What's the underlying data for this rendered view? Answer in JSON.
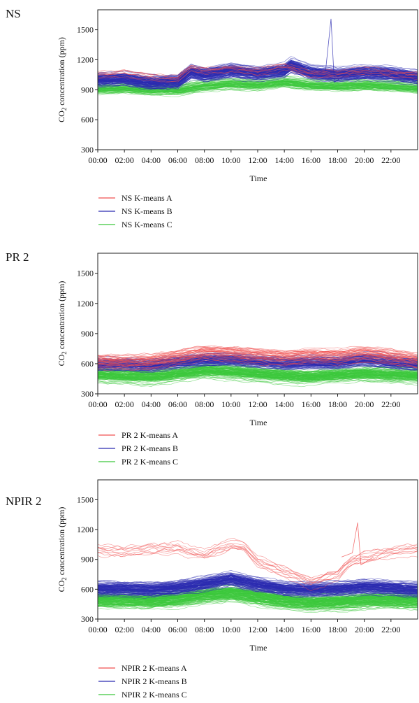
{
  "chart_data": [
    {
      "type": "line",
      "title": "NS",
      "xlabel": "Time",
      "ylabel_main": "CO",
      "ylabel_sub": "2",
      "ylabel_rest": " concentration (ppm)",
      "ylim": [
        300,
        1700
      ],
      "yticks": [
        300,
        600,
        900,
        1200,
        1500
      ],
      "xticks": [
        "00:00",
        "02:00",
        "04:00",
        "06:00",
        "08:00",
        "10:00",
        "12:00",
        "14:00",
        "16:00",
        "18:00",
        "20:00",
        "22:00"
      ],
      "x_range_hours": [
        0,
        24
      ],
      "grid": false,
      "legend_placement": "below",
      "series": [
        {
          "name": "NS K-means A",
          "color": "#f05050",
          "approx_count": 8,
          "spread": 55,
          "x": [
            0,
            2,
            4,
            6,
            7,
            8,
            10,
            12,
            14,
            16,
            18,
            20,
            22,
            24
          ],
          "y": [
            1040,
            1060,
            1020,
            1010,
            1120,
            1090,
            1110,
            1080,
            1130,
            1060,
            1050,
            1090,
            1060,
            1040
          ]
        },
        {
          "name": "NS K-means B",
          "color": "#2b2bb0",
          "approx_count": 120,
          "spread": 50,
          "x": [
            0,
            2,
            4,
            6,
            7,
            8,
            10,
            12,
            14,
            14.5,
            16,
            18,
            20,
            22,
            24
          ],
          "y": [
            1000,
            1010,
            970,
            980,
            1080,
            1050,
            1090,
            1060,
            1090,
            1140,
            1070,
            1050,
            1070,
            1060,
            1020
          ]
        },
        {
          "name": "NS K-means C",
          "color": "#3cc83c",
          "approx_count": 70,
          "spread": 40,
          "x": [
            0,
            2,
            4,
            6,
            8,
            10,
            12,
            14,
            16,
            18,
            20,
            22,
            24
          ],
          "y": [
            910,
            920,
            900,
            900,
            940,
            960,
            950,
            980,
            950,
            940,
            950,
            940,
            920
          ]
        }
      ],
      "annotations": [
        {
          "label": "spike",
          "x": 17.5,
          "y": 1610
        }
      ]
    },
    {
      "type": "line",
      "title": "PR 2",
      "xlabel": "Time",
      "ylabel_main": "CO",
      "ylabel_sub": "2",
      "ylabel_rest": " concentration (ppm)",
      "ylim": [
        300,
        1700
      ],
      "yticks": [
        300,
        600,
        900,
        1200,
        1500
      ],
      "xticks": [
        "00:00",
        "02:00",
        "04:00",
        "06:00",
        "08:00",
        "10:00",
        "12:00",
        "14:00",
        "16:00",
        "18:00",
        "20:00",
        "22:00"
      ],
      "x_range_hours": [
        0,
        24
      ],
      "grid": false,
      "legend_placement": "below",
      "series": [
        {
          "name": "PR 2 K-means A",
          "color": "#f05050",
          "approx_count": 35,
          "spread": 55,
          "x": [
            0,
            2,
            4,
            6,
            8,
            10,
            12,
            14,
            16,
            18,
            20,
            22,
            24
          ],
          "y": [
            640,
            630,
            640,
            680,
            730,
            720,
            700,
            680,
            700,
            690,
            720,
            690,
            650
          ]
        },
        {
          "name": "PR 2 K-means B",
          "color": "#2b2bb0",
          "approx_count": 90,
          "spread": 45,
          "x": [
            0,
            2,
            4,
            6,
            8,
            10,
            12,
            14,
            16,
            18,
            20,
            22,
            24
          ],
          "y": [
            590,
            590,
            580,
            610,
            640,
            640,
            620,
            600,
            610,
            610,
            640,
            610,
            590
          ]
        },
        {
          "name": "PR 2 K-means C",
          "color": "#3cc83c",
          "approx_count": 110,
          "spread": 55,
          "x": [
            0,
            2,
            4,
            6,
            8,
            10,
            12,
            14,
            16,
            18,
            20,
            22,
            24
          ],
          "y": [
            490,
            480,
            470,
            500,
            530,
            520,
            500,
            480,
            470,
            490,
            500,
            490,
            480
          ]
        }
      ]
    },
    {
      "type": "line",
      "title": "NPIR 2",
      "xlabel": "Time",
      "ylabel_main": "CO",
      "ylabel_sub": "2",
      "ylabel_rest": " concentration (ppm)",
      "ylim": [
        300,
        1700
      ],
      "yticks": [
        300,
        600,
        900,
        1200,
        1500
      ],
      "xticks": [
        "00:00",
        "02:00",
        "04:00",
        "06:00",
        "08:00",
        "10:00",
        "12:00",
        "14:00",
        "16:00",
        "18:00",
        "20:00",
        "22:00"
      ],
      "x_range_hours": [
        0,
        24
      ],
      "grid": false,
      "legend_placement": "below",
      "series": [
        {
          "name": "NPIR 2 K-means A",
          "color": "#f05050",
          "approx_count": 10,
          "spread": 90,
          "x": [
            0,
            2,
            4,
            6,
            8,
            10,
            11,
            12,
            14,
            16,
            18,
            19,
            20,
            22,
            24
          ],
          "y": [
            1020,
            1000,
            1030,
            1040,
            980,
            1080,
            1050,
            900,
            800,
            700,
            780,
            900,
            950,
            1000,
            1030
          ]
        },
        {
          "name": "NPIR 2 K-means B",
          "color": "#2b2bb0",
          "approx_count": 110,
          "spread": 50,
          "x": [
            0,
            2,
            4,
            6,
            8,
            10,
            12,
            14,
            16,
            18,
            20,
            22,
            24
          ],
          "y": [
            600,
            600,
            590,
            610,
            650,
            700,
            640,
            600,
            590,
            600,
            620,
            610,
            590
          ]
        },
        {
          "name": "NPIR 2 K-means C",
          "color": "#3cc83c",
          "approx_count": 130,
          "spread": 55,
          "x": [
            0,
            2,
            4,
            6,
            8,
            10,
            12,
            14,
            16,
            18,
            20,
            22,
            24
          ],
          "y": [
            500,
            500,
            490,
            510,
            550,
            570,
            530,
            490,
            470,
            480,
            500,
            500,
            490
          ]
        }
      ],
      "annotations": [
        {
          "label": "spike",
          "x": 19.5,
          "y": 1270
        }
      ]
    }
  ]
}
